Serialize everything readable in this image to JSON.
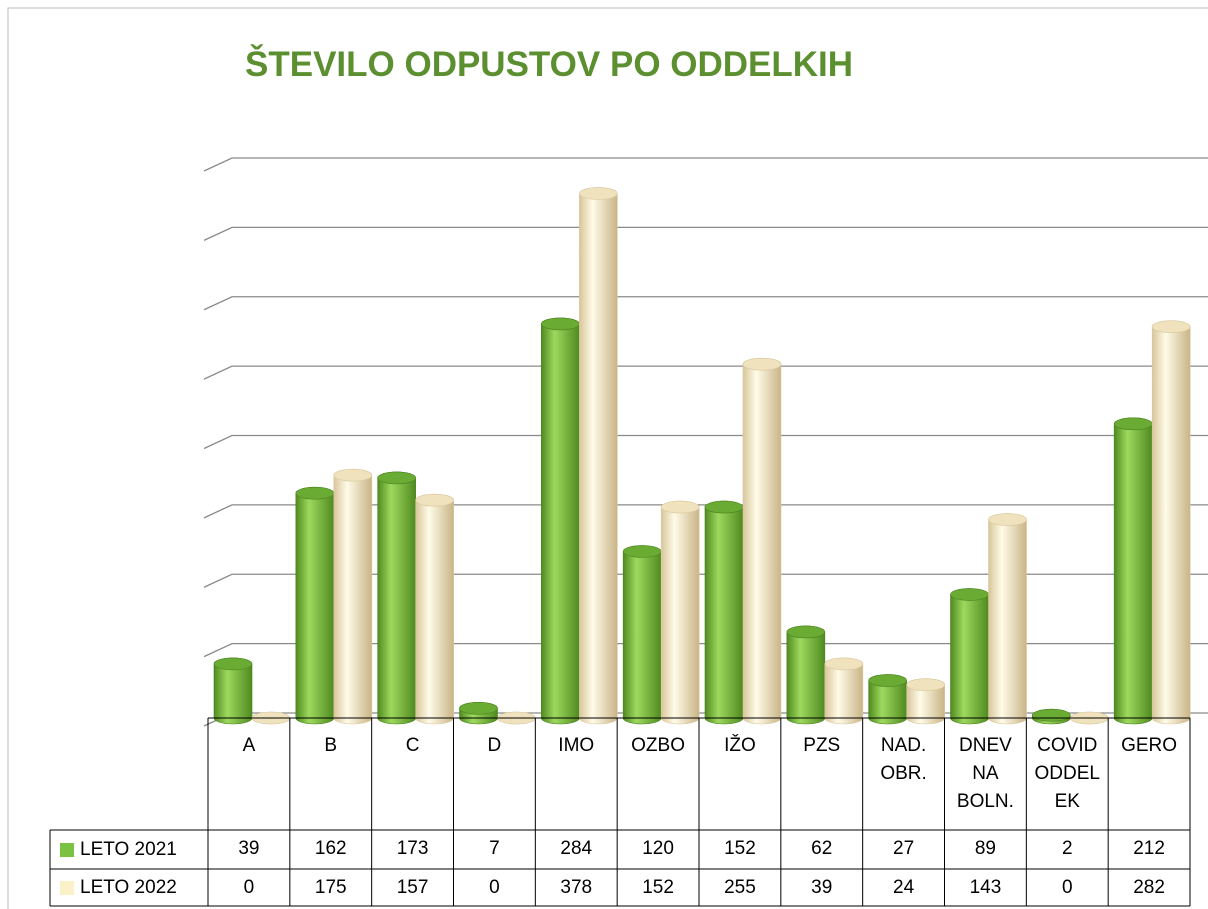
{
  "chart_data": {
    "type": "bar",
    "title": "ŠTEVILO ODPUSTOV PO ODDELKIH",
    "categories": [
      "A",
      "B",
      "C",
      "D",
      "IMO",
      "OZBO",
      "IŽO",
      "PZS",
      "NAD. OBR.",
      "DNEV NA BOLN.",
      "COVID ODDELEK",
      "GERO"
    ],
    "series": [
      {
        "name": "LETO 2021",
        "color": "#7cc242",
        "values": [
          39,
          162,
          173,
          7,
          284,
          120,
          152,
          62,
          27,
          89,
          2,
          212
        ]
      },
      {
        "name": "LETO 2022",
        "color": "#fbf1c8",
        "values": [
          0,
          175,
          157,
          0,
          378,
          152,
          255,
          39,
          24,
          143,
          0,
          282
        ]
      }
    ],
    "ylim": [
      0,
      400
    ],
    "yticks": [
      0,
      50,
      100,
      150,
      200,
      250,
      300,
      350,
      400
    ],
    "grid": true
  }
}
